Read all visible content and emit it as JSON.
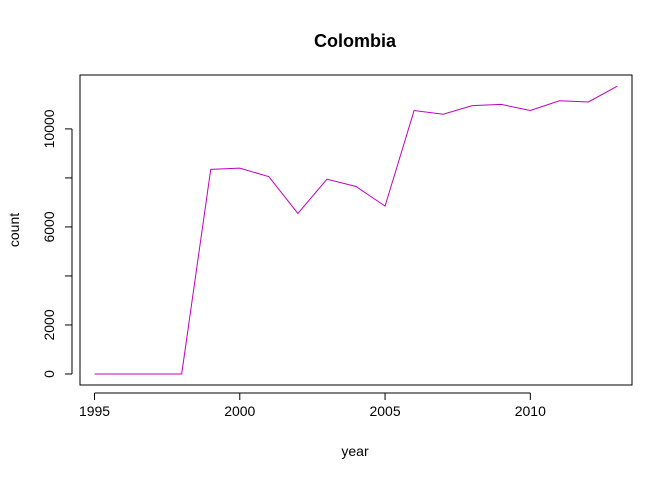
{
  "chart_data": {
    "type": "line",
    "title": "Colombia",
    "xlabel": "year",
    "ylabel": "count",
    "xlim": [
      1994.5,
      2013.5
    ],
    "ylim": [
      -450,
      12200
    ],
    "xticks": [
      1995,
      2000,
      2005,
      2010
    ],
    "yticks": [
      0,
      2000,
      6000,
      10000
    ],
    "ytick_marks": [
      0,
      2000,
      4000,
      6000,
      8000,
      10000
    ],
    "grid": false,
    "series_color": "#C000C0",
    "x": [
      1995,
      1996,
      1997,
      1998,
      1999,
      2000,
      2001,
      2002,
      2003,
      2004,
      2005,
      2006,
      2007,
      2008,
      2009,
      2010,
      2011,
      2012,
      2013
    ],
    "values": [
      0,
      0,
      0,
      0,
      8350,
      8400,
      8050,
      6550,
      7950,
      7650,
      6850,
      10750,
      10600,
      10950,
      11000,
      10750,
      11150,
      11100,
      11750
    ]
  }
}
